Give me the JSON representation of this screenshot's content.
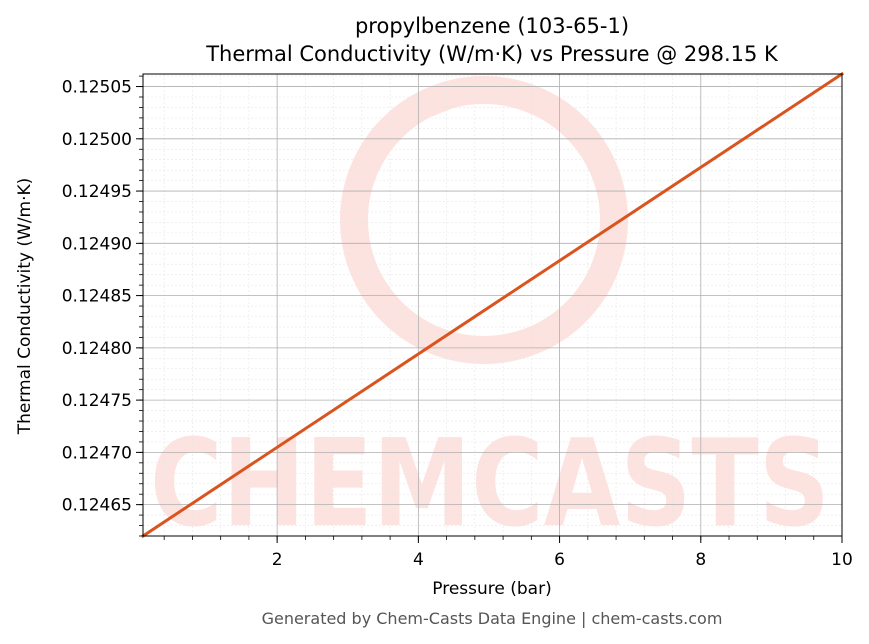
{
  "title_line1": "propylbenzene (103-65-1)",
  "title_line2": "Thermal Conductivity (W/m·K) vs Pressure @ 298.15 K",
  "footer": "Generated by Chem-Casts Data Engine | chem-casts.com",
  "watermark_text": "CHEMCASTS",
  "colors": {
    "line": "#d9541e",
    "watermark": "#fde3df",
    "grid_major": "#b0b0b0",
    "grid_minor": "#e6e6e6"
  },
  "chart_data": {
    "type": "line",
    "xlabel": "Pressure (bar)",
    "ylabel": "Thermal Conductivity (W/m·K)",
    "xlim": [
      0.1,
      10
    ],
    "ylim": [
      0.12462,
      0.125062
    ],
    "x_ticks": [
      2,
      4,
      6,
      8,
      10
    ],
    "x_tick_labels": [
      "2",
      "4",
      "6",
      "8",
      "10"
    ],
    "y_ticks": [
      0.12465,
      0.1247,
      0.12475,
      0.1248,
      0.12485,
      0.1249,
      0.12495,
      0.125,
      0.12505
    ],
    "y_tick_labels": [
      "0.12465",
      "0.12470",
      "0.12475",
      "0.12480",
      "0.12485",
      "0.12490",
      "0.12495",
      "0.12500",
      "0.12505"
    ],
    "grid": true,
    "minor_grid": true,
    "series": [
      {
        "x": [
          0.1,
          10
        ],
        "y": [
          0.12462,
          0.125062
        ]
      }
    ]
  }
}
